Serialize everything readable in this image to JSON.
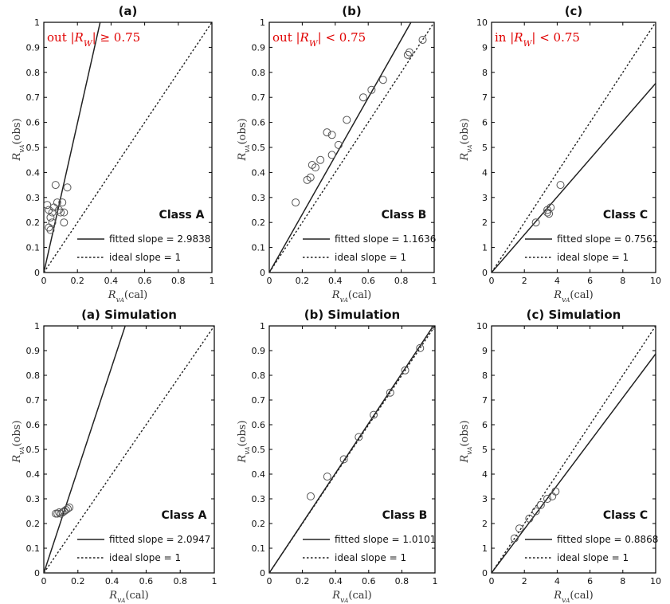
{
  "chart_data": [
    {
      "type": "scatter",
      "title": "(a)",
      "annotation": "out |R_W| ≥ 0.75",
      "class_label": "Class A",
      "xlabel": "R_{v_A}(cal)",
      "ylabel": "R_{v_A}(obs)",
      "xlim": [
        0,
        1
      ],
      "ylim": [
        0,
        1
      ],
      "xticks": [
        0,
        0.2,
        0.4,
        0.6,
        0.8,
        1
      ],
      "yticks": [
        0,
        0.1,
        0.2,
        0.3,
        0.4,
        0.5,
        0.6,
        0.7,
        0.8,
        0.9,
        1
      ],
      "xtick_labels": [
        "0",
        "0.2",
        "0.4",
        "0.6",
        "0.8",
        "1"
      ],
      "ytick_labels": [
        "0",
        "0.1",
        "0.2",
        "0.3",
        "0.4",
        "0.5",
        "0.6",
        "0.7",
        "0.8",
        "0.9",
        "1"
      ],
      "points": [
        [
          0.02,
          0.27
        ],
        [
          0.03,
          0.25
        ],
        [
          0.03,
          0.18
        ],
        [
          0.04,
          0.17
        ],
        [
          0.04,
          0.22
        ],
        [
          0.05,
          0.2
        ],
        [
          0.05,
          0.24
        ],
        [
          0.06,
          0.26
        ],
        [
          0.07,
          0.35
        ],
        [
          0.08,
          0.28
        ],
        [
          0.09,
          0.25
        ],
        [
          0.1,
          0.24
        ],
        [
          0.11,
          0.28
        ],
        [
          0.12,
          0.24
        ],
        [
          0.12,
          0.2
        ],
        [
          0.14,
          0.34
        ]
      ],
      "fitted_slope": 2.9838,
      "ideal_slope": 1,
      "legend": [
        "fitted slope = 2.9838",
        "ideal slope = 1"
      ]
    },
    {
      "type": "scatter",
      "title": "(b)",
      "annotation": "out |R_W| < 0.75",
      "class_label": "Class B",
      "xlabel": "R_{v_A}(cal)",
      "ylabel": "R_{v_A}(obs)",
      "xlim": [
        0,
        1
      ],
      "ylim": [
        0,
        1
      ],
      "xticks": [
        0,
        0.2,
        0.4,
        0.6,
        0.8,
        1
      ],
      "yticks": [
        0,
        0.1,
        0.2,
        0.3,
        0.4,
        0.5,
        0.6,
        0.7,
        0.8,
        0.9,
        1
      ],
      "xtick_labels": [
        "0",
        "0.2",
        "0.4",
        "0.6",
        "0.8",
        "1"
      ],
      "ytick_labels": [
        "0",
        "0.1",
        "0.2",
        "0.3",
        "0.4",
        "0.5",
        "0.6",
        "0.7",
        "0.8",
        "0.9",
        "1"
      ],
      "points": [
        [
          0.16,
          0.28
        ],
        [
          0.23,
          0.37
        ],
        [
          0.25,
          0.38
        ],
        [
          0.26,
          0.43
        ],
        [
          0.28,
          0.42
        ],
        [
          0.31,
          0.45
        ],
        [
          0.35,
          0.56
        ],
        [
          0.38,
          0.47
        ],
        [
          0.38,
          0.55
        ],
        [
          0.42,
          0.51
        ],
        [
          0.47,
          0.61
        ],
        [
          0.57,
          0.7
        ],
        [
          0.62,
          0.73
        ],
        [
          0.69,
          0.77
        ],
        [
          0.84,
          0.87
        ],
        [
          0.85,
          0.88
        ],
        [
          0.93,
          0.93
        ]
      ],
      "fitted_slope": 1.1636,
      "ideal_slope": 1,
      "legend": [
        "fitted slope = 1.1636",
        "ideal slope = 1"
      ]
    },
    {
      "type": "scatter",
      "title": "(c)",
      "annotation": "in |R_W| < 0.75",
      "class_label": "Class C",
      "xlabel": "R_{v_A}(cal)",
      "ylabel": "R_{v_A}(obs)",
      "xlim": [
        0,
        10
      ],
      "ylim": [
        0,
        10
      ],
      "xticks": [
        0,
        2,
        4,
        6,
        8,
        10
      ],
      "yticks": [
        0,
        1,
        2,
        3,
        4,
        5,
        6,
        7,
        8,
        9,
        10
      ],
      "xtick_labels": [
        "0",
        "2",
        "4",
        "6",
        "8",
        "10"
      ],
      "ytick_labels": [
        "0",
        "1",
        "2",
        "3",
        "4",
        "5",
        "6",
        "7",
        "8",
        "9",
        "10"
      ],
      "points": [
        [
          2.7,
          2.0
        ],
        [
          3.4,
          2.4
        ],
        [
          3.4,
          2.5
        ],
        [
          3.5,
          2.35
        ],
        [
          3.6,
          2.6
        ],
        [
          4.2,
          3.5
        ]
      ],
      "fitted_slope": 0.7561,
      "ideal_slope": 1,
      "legend": [
        "fitted slope = 0.7561",
        "ideal slope = 1"
      ]
    },
    {
      "type": "scatter",
      "title": "(a) Simulation",
      "class_label": "Class A",
      "xlabel": "R_{v_A}(cal)",
      "ylabel": "R_{v_A}(obs)",
      "xlim": [
        0,
        1
      ],
      "ylim": [
        0,
        1
      ],
      "xticks": [
        0,
        0.2,
        0.4,
        0.6,
        0.8,
        1
      ],
      "yticks": [
        0,
        0.1,
        0.2,
        0.3,
        0.4,
        0.5,
        0.6,
        0.7,
        0.8,
        0.9,
        1
      ],
      "xtick_labels": [
        "0",
        "0.2",
        "0.4",
        "0.6",
        "0.8",
        "1"
      ],
      "ytick_labels": [
        "0",
        "0.1",
        "0.2",
        "0.3",
        "0.4",
        "0.5",
        "0.6",
        "0.7",
        "0.8",
        "0.9",
        "1"
      ],
      "points": [
        [
          0.07,
          0.24
        ],
        [
          0.08,
          0.24
        ],
        [
          0.09,
          0.245
        ],
        [
          0.1,
          0.24
        ],
        [
          0.11,
          0.245
        ],
        [
          0.12,
          0.25
        ],
        [
          0.13,
          0.255
        ],
        [
          0.14,
          0.26
        ],
        [
          0.15,
          0.265
        ]
      ],
      "fitted_slope": 2.0947,
      "ideal_slope": 1,
      "legend": [
        "fitted slope = 2.0947",
        "ideal slope = 1"
      ]
    },
    {
      "type": "scatter",
      "title": "(b) Simulation",
      "class_label": "Class B",
      "xlabel": "R_{v_A}(cal)",
      "ylabel": "R_{v_A}(obs)",
      "xlim": [
        0,
        1
      ],
      "ylim": [
        0,
        1
      ],
      "xticks": [
        0,
        0.2,
        0.4,
        0.6,
        0.8,
        1
      ],
      "yticks": [
        0,
        0.1,
        0.2,
        0.3,
        0.4,
        0.5,
        0.6,
        0.7,
        0.8,
        0.9,
        1
      ],
      "xtick_labels": [
        "0",
        "0.2",
        "0.4",
        "0.6",
        "0.8",
        "1"
      ],
      "ytick_labels": [
        "0",
        "0.1",
        "0.2",
        "0.3",
        "0.4",
        "0.5",
        "0.6",
        "0.7",
        "0.8",
        "0.9",
        "1"
      ],
      "points": [
        [
          0.25,
          0.31
        ],
        [
          0.35,
          0.39
        ],
        [
          0.45,
          0.46
        ],
        [
          0.54,
          0.55
        ],
        [
          0.63,
          0.64
        ],
        [
          0.73,
          0.73
        ],
        [
          0.82,
          0.82
        ],
        [
          0.91,
          0.91
        ],
        [
          1.0,
          1.0
        ]
      ],
      "fitted_slope": 1.0101,
      "ideal_slope": 1,
      "legend": [
        "fitted slope = 1.0101",
        "ideal slope = 1"
      ]
    },
    {
      "type": "scatter",
      "title": "(c) Simulation",
      "class_label": "Class C",
      "xlabel": "R_{v_A}(cal)",
      "ylabel": "R_{v_A}(obs)",
      "xlim": [
        0,
        10
      ],
      "ylim": [
        0,
        10
      ],
      "xticks": [
        0,
        2,
        4,
        6,
        8,
        10
      ],
      "yticks": [
        0,
        1,
        2,
        3,
        4,
        5,
        6,
        7,
        8,
        9,
        10
      ],
      "xtick_labels": [
        "0",
        "2",
        "4",
        "6",
        "8",
        "10"
      ],
      "ytick_labels": [
        "0",
        "1",
        "2",
        "3",
        "4",
        "5",
        "6",
        "7",
        "8",
        "9",
        "10"
      ],
      "points": [
        [
          1.4,
          1.4
        ],
        [
          1.7,
          1.8
        ],
        [
          2.3,
          2.2
        ],
        [
          2.7,
          2.5
        ],
        [
          3.0,
          2.75
        ],
        [
          3.4,
          3.0
        ],
        [
          3.7,
          3.1
        ],
        [
          3.9,
          3.3
        ]
      ],
      "fitted_slope": 0.8868,
      "ideal_slope": 1,
      "legend": [
        "fitted slope = 0.8868",
        "ideal slope = 1"
      ]
    }
  ]
}
